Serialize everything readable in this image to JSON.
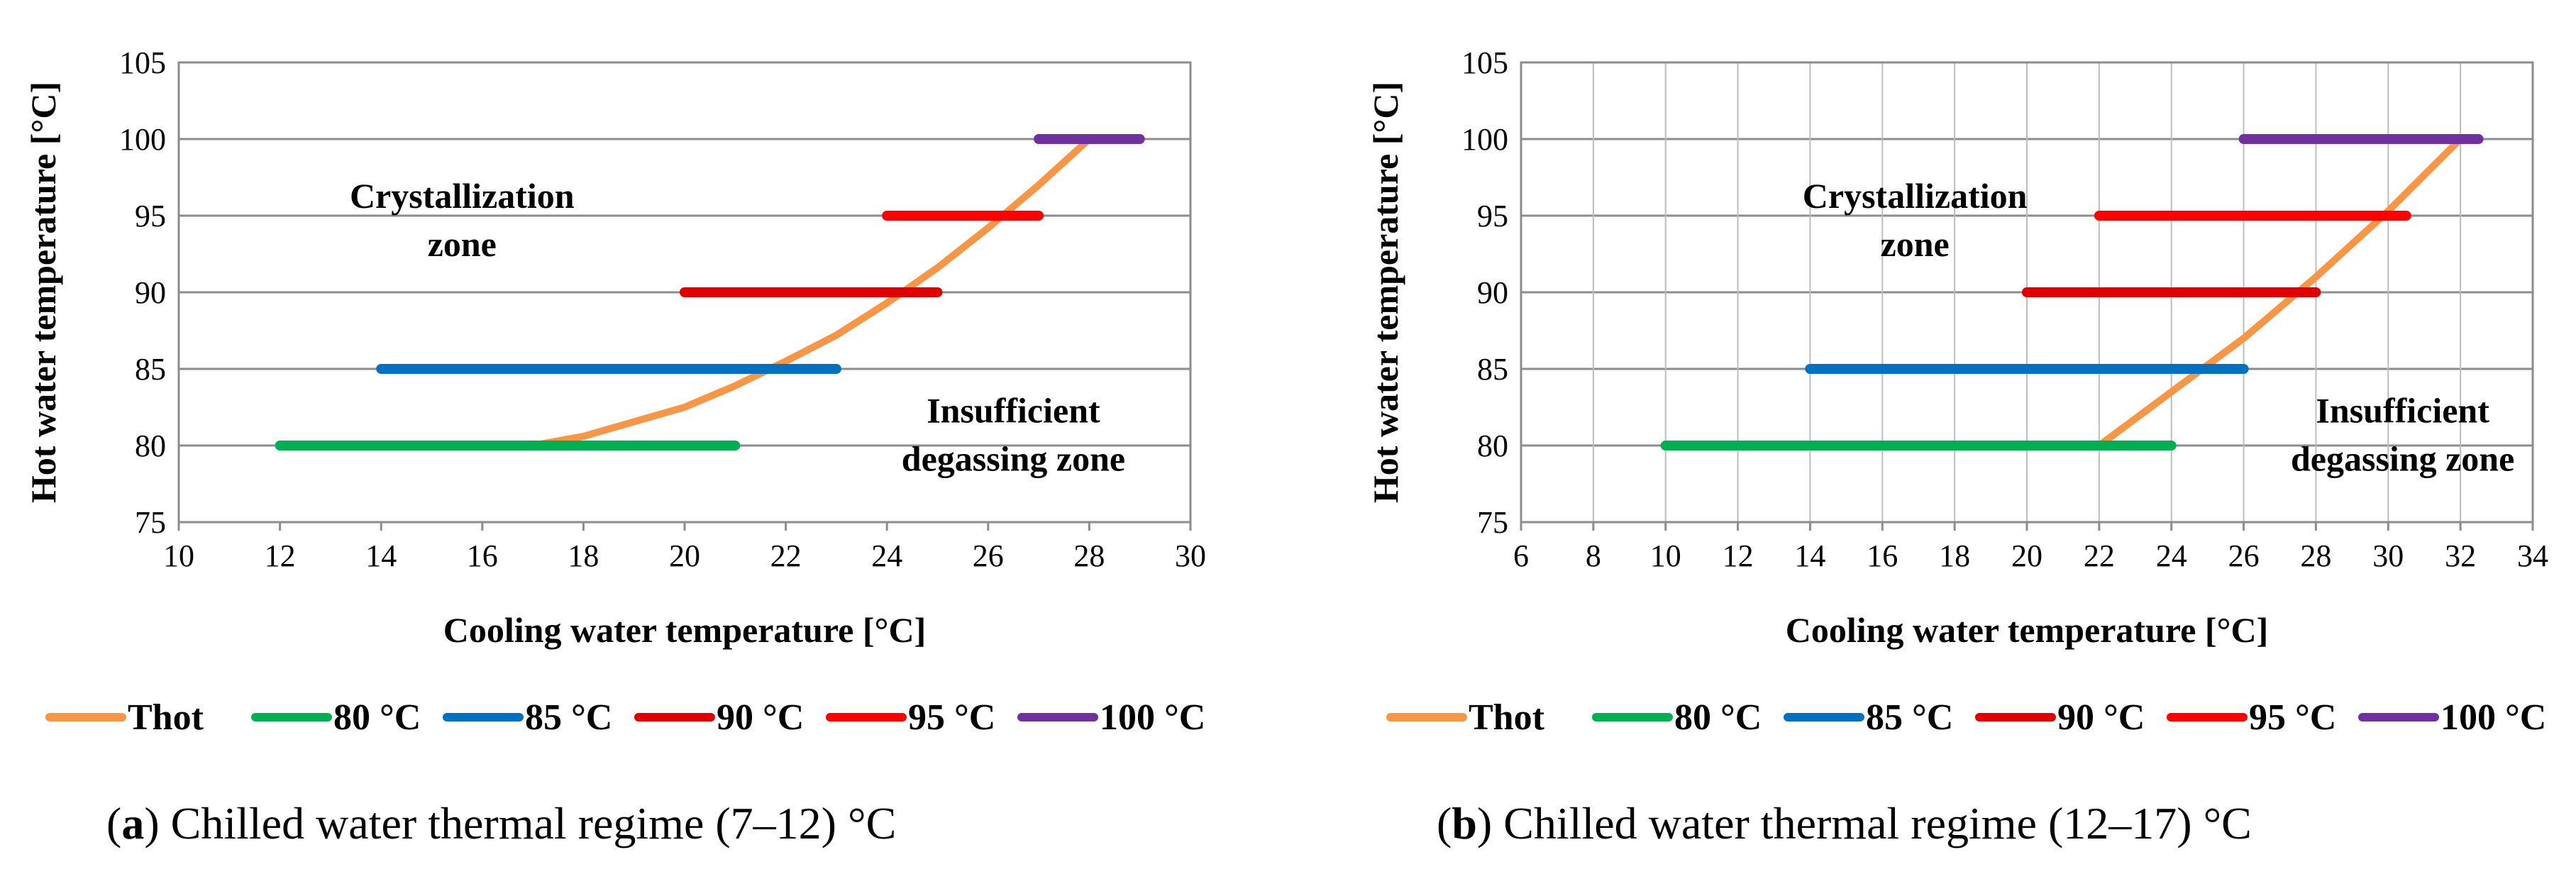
{
  "chart_data": [
    {
      "type": "line",
      "caption_letter": "a",
      "caption_text": ") Chilled water thermal regime (7–12) °C",
      "xlabel": "Cooling water temperature [°C]",
      "ylabel": "Hot water temperature [°C]",
      "xlim": [
        10,
        30
      ],
      "ylim": [
        75,
        105
      ],
      "xticks": [
        10,
        12,
        14,
        16,
        18,
        20,
        22,
        24,
        26,
        28,
        30
      ],
      "yticks": [
        75,
        80,
        85,
        90,
        95,
        100,
        105
      ],
      "grid": "horizontal",
      "annotations": [
        {
          "id": "crystallization",
          "lines": [
            "Crystallization",
            "zone"
          ],
          "x": 15.6,
          "y": 95.5
        },
        {
          "id": "insufficient",
          "lines": [
            "Insufficient",
            "degassing zone"
          ],
          "x": 26.5,
          "y": 81.5
        }
      ],
      "series": [
        {
          "name": "Thot",
          "color": "#F79646",
          "kind": "curve",
          "points": [
            [
              17,
              80
            ],
            [
              18,
              80.6
            ],
            [
              20,
              82.5
            ],
            [
              21,
              83.9
            ],
            [
              22,
              85.5
            ],
            [
              23,
              87.2
            ],
            [
              24,
              89.3
            ],
            [
              25,
              91.6
            ],
            [
              26,
              94.2
            ],
            [
              27,
              97
            ],
            [
              28,
              100
            ]
          ]
        },
        {
          "name": "80 °C",
          "color": "#00B050",
          "kind": "segment",
          "points": [
            [
              12,
              80
            ],
            [
              21,
              80
            ]
          ]
        },
        {
          "name": "85 °C",
          "color": "#0070C0",
          "kind": "segment",
          "points": [
            [
              14,
              85
            ],
            [
              23,
              85
            ]
          ]
        },
        {
          "name": "90 °C",
          "color": "#E00000",
          "kind": "segment",
          "points": [
            [
              20,
              90
            ],
            [
              25,
              90
            ]
          ]
        },
        {
          "name": "95 °C",
          "color": "#FF0000",
          "kind": "segment",
          "points": [
            [
              24,
              95
            ],
            [
              27,
              95
            ]
          ]
        },
        {
          "name": "100 °C",
          "color": "#7030A0",
          "kind": "segment",
          "points": [
            [
              27,
              100
            ],
            [
              29,
              100
            ]
          ]
        }
      ]
    },
    {
      "type": "line",
      "caption_letter": "b",
      "caption_text": ") Chilled water thermal regime (12–17) °C",
      "xlabel": "Cooling water temperature [°C]",
      "ylabel": "Hot water temperature [°C]",
      "xlim": [
        6,
        34
      ],
      "ylim": [
        75,
        105
      ],
      "xticks": [
        6,
        8,
        10,
        12,
        14,
        16,
        18,
        20,
        22,
        24,
        26,
        28,
        30,
        32,
        34
      ],
      "yticks": [
        75,
        80,
        85,
        90,
        95,
        100,
        105
      ],
      "grid": "both",
      "annotations": [
        {
          "id": "crystallization",
          "lines": [
            "Crystallization",
            "zone"
          ],
          "x": 16.9,
          "y": 95.5
        },
        {
          "id": "insufficient",
          "lines": [
            "Insufficient",
            "degassing zone"
          ],
          "x": 30.4,
          "y": 81.5
        }
      ],
      "series": [
        {
          "name": "Thot",
          "color": "#F79646",
          "kind": "curve",
          "points": [
            [
              22,
              80
            ],
            [
              24,
              83.5
            ],
            [
              26,
              87
            ],
            [
              28,
              91
            ],
            [
              30,
              95.3
            ],
            [
              32,
              100
            ]
          ]
        },
        {
          "name": "80 °C",
          "color": "#00B050",
          "kind": "segment",
          "points": [
            [
              10,
              80
            ],
            [
              24,
              80
            ]
          ]
        },
        {
          "name": "85 °C",
          "color": "#0070C0",
          "kind": "segment",
          "points": [
            [
              14,
              85
            ],
            [
              26,
              85
            ]
          ]
        },
        {
          "name": "90 °C",
          "color": "#E00000",
          "kind": "segment",
          "points": [
            [
              20,
              90
            ],
            [
              28,
              90
            ]
          ]
        },
        {
          "name": "95 °C",
          "color": "#FF0000",
          "kind": "segment",
          "points": [
            [
              22,
              95
            ],
            [
              30.5,
              95
            ]
          ]
        },
        {
          "name": "100 °C",
          "color": "#7030A0",
          "kind": "segment",
          "points": [
            [
              26,
              100
            ],
            [
              32.5,
              100
            ]
          ]
        }
      ]
    }
  ]
}
